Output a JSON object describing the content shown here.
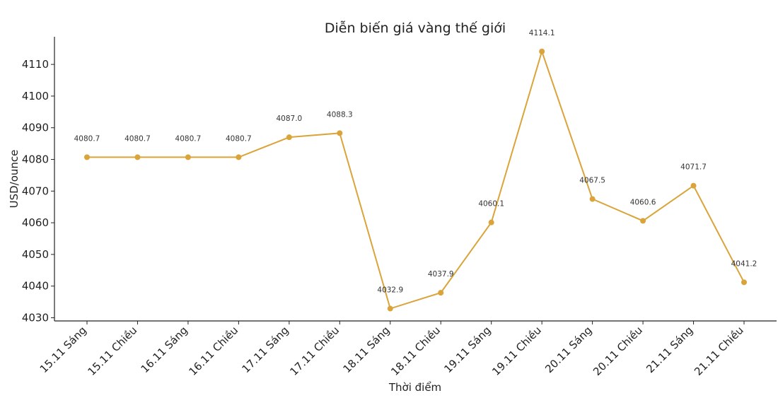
{
  "chart_data": {
    "type": "line",
    "title": "Diễn biến giá vàng thế giới",
    "xlabel": "Thời điểm",
    "ylabel": "USD/ounce",
    "categories": [
      "15.11 Sáng",
      "15.11 Chiều",
      "16.11 Sáng",
      "16.11 Chiều",
      "17.11 Sáng",
      "17.11 Chiều",
      "18.11 Sáng",
      "18.11 Chiều",
      "19.11 Sáng",
      "19.11 Chiều",
      "20.11 Sáng",
      "20.11 Chiều",
      "21.11 Sáng",
      "21.11 Chiều"
    ],
    "series": [
      {
        "values": [
          4080.7,
          4080.7,
          4080.7,
          4080.7,
          4087.0,
          4088.3,
          4032.9,
          4037.9,
          4060.1,
          4114.1,
          4067.5,
          4060.6,
          4071.7,
          4041.2
        ],
        "labels": [
          "4080.7",
          "4080.7",
          "4080.7",
          "4080.7",
          "4087.0",
          "4088.3",
          "4032.9",
          "4037.9",
          "4060.1",
          "4114.1",
          "4067.5",
          "4060.6",
          "4071.7",
          "4041.2"
        ],
        "color": "#DAA43A"
      }
    ],
    "yticks": [
      "4030",
      "4040",
      "4050",
      "4060",
      "4070",
      "4080",
      "4090",
      "4100",
      "4110"
    ],
    "ylim": [
      4029,
      4118
    ],
    "grid": false,
    "legend": "none"
  }
}
